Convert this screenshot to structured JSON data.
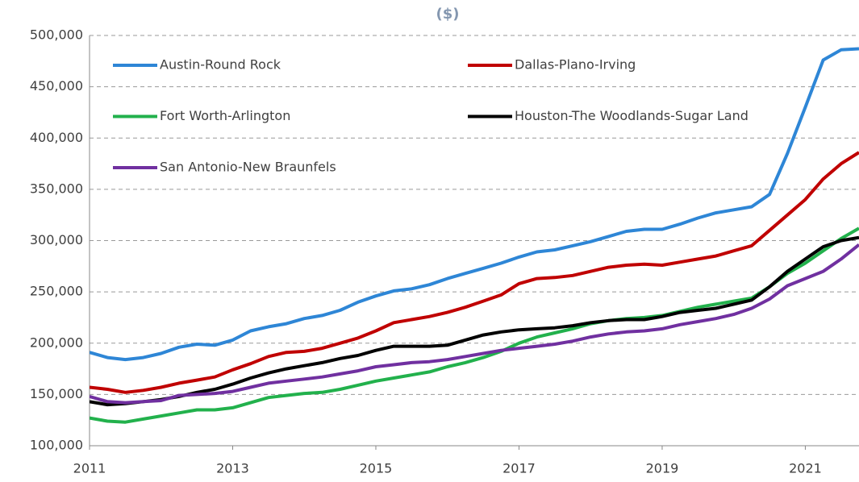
{
  "chart_data": {
    "type": "line",
    "title": "($)",
    "x": [
      2011,
      2011.25,
      2011.5,
      2011.75,
      2012,
      2012.25,
      2012.5,
      2012.75,
      2013,
      2013.25,
      2013.5,
      2013.75,
      2014,
      2014.25,
      2014.5,
      2014.75,
      2015,
      2015.25,
      2015.5,
      2015.75,
      2016,
      2016.25,
      2016.5,
      2016.75,
      2017,
      2017.25,
      2017.5,
      2017.75,
      2018,
      2018.25,
      2018.5,
      2018.75,
      2019,
      2019.25,
      2019.5,
      2019.75,
      2020,
      2020.25,
      2020.5,
      2020.75,
      2021,
      2021.25,
      2021.5,
      2021.75
    ],
    "series": [
      {
        "name": "Austin-Round Rock",
        "color": "#2e86d6",
        "values": [
          191000,
          186000,
          184000,
          186000,
          190000,
          196000,
          199000,
          198000,
          203000,
          212000,
          216000,
          219000,
          224000,
          227000,
          232000,
          240000,
          246000,
          251000,
          253000,
          257000,
          263000,
          268000,
          273000,
          278000,
          284000,
          289000,
          291000,
          295000,
          299000,
          304000,
          309000,
          311000,
          311000,
          316000,
          322000,
          327000,
          330000,
          333000,
          345000,
          385000,
          430000,
          476000,
          486000,
          487000
        ]
      },
      {
        "name": "Dallas-Plano-Irving",
        "color": "#c00000",
        "values": [
          157000,
          155000,
          152000,
          154000,
          157000,
          161000,
          164000,
          167000,
          174000,
          180000,
          187000,
          191000,
          192000,
          195000,
          200000,
          205000,
          212000,
          220000,
          223000,
          226000,
          230000,
          235000,
          241000,
          247000,
          258000,
          263000,
          264000,
          266000,
          270000,
          274000,
          276000,
          277000,
          276000,
          279000,
          282000,
          285000,
          290000,
          295000,
          310000,
          325000,
          340000,
          360000,
          375000,
          386000
        ]
      },
      {
        "name": "Fort Worth-Arlington",
        "color": "#22b14c",
        "values": [
          127000,
          124000,
          123000,
          126000,
          129000,
          132000,
          135000,
          135000,
          137000,
          142000,
          147000,
          149000,
          151000,
          152000,
          155000,
          159000,
          163000,
          166000,
          169000,
          172000,
          177000,
          181000,
          186000,
          192000,
          200000,
          206000,
          210000,
          214000,
          219000,
          222000,
          224000,
          225000,
          227000,
          231000,
          235000,
          238000,
          241000,
          244000,
          255000,
          268000,
          278000,
          290000,
          302000,
          312000
        ]
      },
      {
        "name": "Houston-The Woodlands-Sugar Land",
        "color": "#000000",
        "values": [
          143000,
          140000,
          141000,
          143000,
          145000,
          148000,
          152000,
          155000,
          160000,
          166000,
          171000,
          175000,
          178000,
          181000,
          185000,
          188000,
          193000,
          197000,
          197000,
          197000,
          198000,
          203000,
          208000,
          211000,
          213000,
          214000,
          215000,
          217000,
          220000,
          222000,
          223000,
          223000,
          226000,
          230000,
          232000,
          234000,
          238000,
          242000,
          255000,
          270000,
          282000,
          294000,
          300000,
          303000
        ]
      },
      {
        "name": "San Antonio-New Braunfels",
        "color": "#7030a0",
        "values": [
          148000,
          143000,
          142000,
          143000,
          144000,
          149000,
          150000,
          151000,
          153000,
          157000,
          161000,
          163000,
          165000,
          167000,
          170000,
          173000,
          177000,
          179000,
          181000,
          182000,
          184000,
          187000,
          190000,
          193000,
          195000,
          197000,
          199000,
          202000,
          206000,
          209000,
          211000,
          212000,
          214000,
          218000,
          221000,
          224000,
          228000,
          234000,
          243000,
          256000,
          263000,
          270000,
          282000,
          296000
        ]
      }
    ],
    "xlim": [
      2011,
      2021.75
    ],
    "xticks": [
      2011,
      2013,
      2015,
      2017,
      2019,
      2021
    ],
    "ylim": [
      100000,
      500000
    ],
    "yticks": [
      {
        "value": 100000,
        "label": "100,000"
      },
      {
        "value": 150000,
        "label": "150,000"
      },
      {
        "value": 200000,
        "label": "200,000"
      },
      {
        "value": 250000,
        "label": "250,000"
      },
      {
        "value": 300000,
        "label": "300,000"
      },
      {
        "value": 350000,
        "label": "350,000"
      },
      {
        "value": 400000,
        "label": "400,000"
      },
      {
        "value": 450000,
        "label": "450,000"
      },
      {
        "value": 500000,
        "label": "500,000"
      }
    ],
    "grid": true
  }
}
